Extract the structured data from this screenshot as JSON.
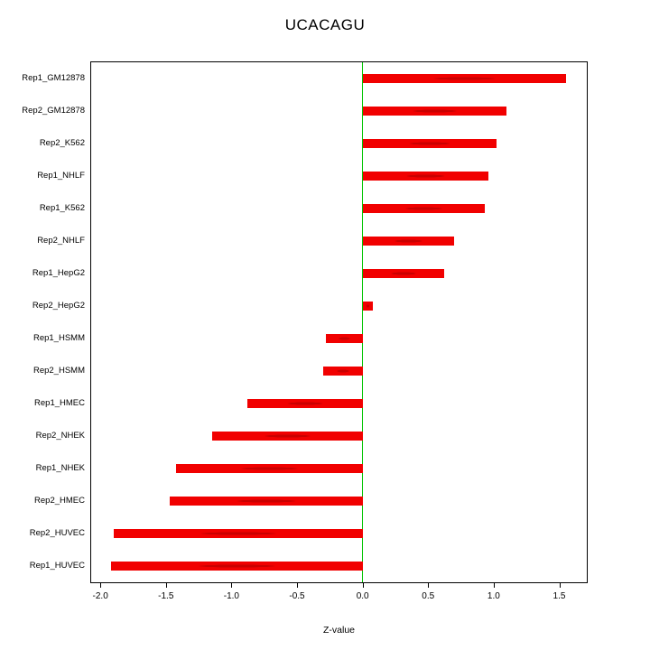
{
  "chart_data": {
    "type": "bar",
    "orientation": "horizontal",
    "title": "UCACAGU",
    "xlabel": "Z-value",
    "ylabel": "",
    "categories": [
      "Rep1_GM12878",
      "Rep2_GM12878",
      "Rep2_K562",
      "Rep1_NHLF",
      "Rep1_K562",
      "Rep2_NHLF",
      "Rep1_HepG2",
      "Rep2_HepG2",
      "Rep1_HSMM",
      "Rep2_HSMM",
      "Rep1_HMEC",
      "Rep2_NHEK",
      "Rep1_NHEK",
      "Rep2_HMEC",
      "Rep2_HUVEC",
      "Rep1_HUVEC"
    ],
    "values": [
      1.55,
      1.1,
      1.02,
      0.96,
      0.93,
      0.7,
      0.62,
      0.08,
      -0.28,
      -0.3,
      -0.88,
      -1.15,
      -1.42,
      -1.47,
      -1.9,
      -1.92
    ],
    "xlim": [
      -2.07,
      1.71
    ],
    "xticks": [
      -2.0,
      -1.5,
      -1.0,
      -0.5,
      0.0,
      0.5,
      1.0,
      1.5
    ],
    "xtick_labels": [
      "-2.0",
      "-1.5",
      "-1.0",
      "-0.5",
      "0.0",
      "0.5",
      "1.0",
      "1.5"
    ],
    "grid": false,
    "legend": "none",
    "bar_color": "#f10000",
    "bar_dot_color": "rgba(130,0,0,0.35)",
    "zero_line_color": "#00c400",
    "axis_color": "#000000"
  }
}
